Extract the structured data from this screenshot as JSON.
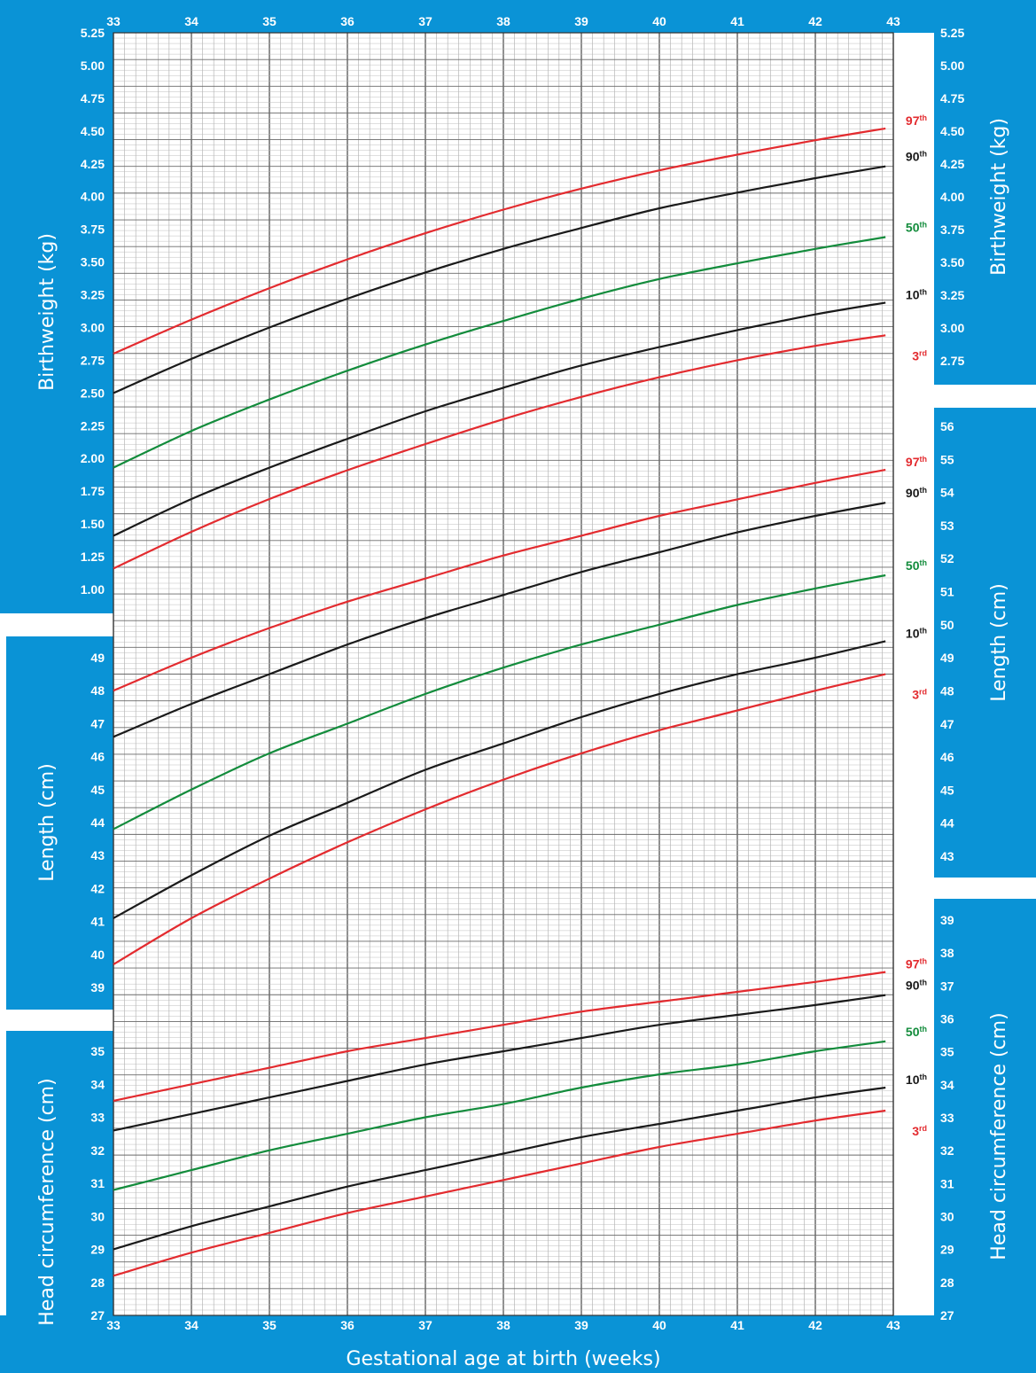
{
  "chart_data": {
    "type": "line",
    "xlabel": "Gestational age at birth (weeks)",
    "x_ticks": [
      "33",
      "34",
      "35",
      "36",
      "37",
      "38",
      "39",
      "40",
      "41",
      "42",
      "43"
    ],
    "xlim": [
      33,
      43
    ],
    "colors": {
      "panel": "#0a93d6",
      "red": "#e32b2f",
      "black": "#1a1a1a",
      "green": "#138c3c",
      "grid": "#9a9a9a"
    },
    "percentile_labels": [
      {
        "num": "97",
        "suf": "th",
        "color": "red"
      },
      {
        "num": "90",
        "suf": "th",
        "color": "black"
      },
      {
        "num": "50",
        "suf": "th",
        "color": "green"
      },
      {
        "num": "10",
        "suf": "th",
        "color": "black"
      },
      {
        "num": "3",
        "suf": "rd",
        "color": "red"
      }
    ],
    "panels": [
      {
        "ylabel": "Birthweight (kg)",
        "unit": "kg",
        "left_ticks": [
          "5.25",
          "5.00",
          "4.75",
          "4.50",
          "4.25",
          "4.00",
          "3.75",
          "3.50",
          "3.25",
          "3.00",
          "2.75",
          "2.50",
          "2.25",
          "2.00",
          "1.75",
          "1.50",
          "1.25",
          "1.00"
        ],
        "right_ticks": [
          "5.25",
          "5.00",
          "4.75",
          "4.50",
          "4.25",
          "4.00",
          "3.75",
          "3.50",
          "3.25",
          "3.00",
          "2.75"
        ],
        "series": [
          {
            "percentile": "97",
            "x": [
              33,
              34,
              35,
              36,
              37,
              38,
              39,
              40,
              41,
              42,
              42.9
            ],
            "y": [
              2.8,
              3.06,
              3.3,
              3.52,
              3.72,
              3.9,
              4.06,
              4.2,
              4.32,
              4.43,
              4.52
            ]
          },
          {
            "percentile": "90",
            "x": [
              33,
              34,
              35,
              36,
              37,
              38,
              39,
              40,
              41,
              42,
              42.9
            ],
            "y": [
              2.5,
              2.76,
              3.0,
              3.22,
              3.42,
              3.6,
              3.76,
              3.91,
              4.03,
              4.14,
              4.23
            ]
          },
          {
            "percentile": "50",
            "x": [
              33,
              34,
              35,
              36,
              37,
              38,
              39,
              40,
              41,
              42,
              42.9
            ],
            "y": [
              1.93,
              2.21,
              2.45,
              2.67,
              2.87,
              3.05,
              3.22,
              3.37,
              3.49,
              3.6,
              3.69
            ]
          },
          {
            "percentile": "10",
            "x": [
              33,
              34,
              35,
              36,
              37,
              38,
              39,
              40,
              41,
              42,
              42.9
            ],
            "y": [
              1.41,
              1.69,
              1.93,
              2.15,
              2.36,
              2.54,
              2.71,
              2.85,
              2.98,
              3.1,
              3.19
            ]
          },
          {
            "percentile": "3",
            "x": [
              33,
              34,
              35,
              36,
              37,
              38,
              39,
              40,
              41,
              42,
              42.9
            ],
            "y": [
              1.16,
              1.44,
              1.69,
              1.91,
              2.11,
              2.3,
              2.47,
              2.62,
              2.75,
              2.86,
              2.94
            ]
          }
        ]
      },
      {
        "ylabel": "Length (cm)",
        "unit": "cm",
        "left_ticks": [
          "49",
          "48",
          "47",
          "46",
          "45",
          "44",
          "43",
          "42",
          "41",
          "40",
          "39"
        ],
        "right_ticks": [
          "56",
          "55",
          "54",
          "53",
          "52",
          "51",
          "50",
          "49",
          "48",
          "47",
          "46",
          "45",
          "44",
          "43"
        ],
        "series": [
          {
            "percentile": "97",
            "x": [
              33,
              34,
              35,
              36,
              37,
              38,
              39,
              40,
              41,
              42,
              42.9
            ],
            "y": [
              48.0,
              49.0,
              49.9,
              50.7,
              51.4,
              52.1,
              52.7,
              53.3,
              53.8,
              54.3,
              54.7
            ]
          },
          {
            "percentile": "90",
            "x": [
              33,
              34,
              35,
              36,
              37,
              38,
              39,
              40,
              41,
              42,
              42.9
            ],
            "y": [
              46.6,
              47.6,
              48.5,
              49.4,
              50.2,
              50.9,
              51.6,
              52.2,
              52.8,
              53.3,
              53.7
            ]
          },
          {
            "percentile": "50",
            "x": [
              33,
              34,
              35,
              36,
              37,
              38,
              39,
              40,
              41,
              42,
              42.9
            ],
            "y": [
              43.8,
              45.0,
              46.1,
              47.0,
              47.9,
              48.7,
              49.4,
              50.0,
              50.6,
              51.1,
              51.5
            ]
          },
          {
            "percentile": "10",
            "x": [
              33,
              34,
              35,
              36,
              37,
              38,
              39,
              40,
              41,
              42,
              42.9
            ],
            "y": [
              41.1,
              42.4,
              43.6,
              44.6,
              45.6,
              46.4,
              47.2,
              47.9,
              48.5,
              49.0,
              49.5
            ]
          },
          {
            "percentile": "3",
            "x": [
              33,
              34,
              35,
              36,
              37,
              38,
              39,
              40,
              41,
              42,
              42.9
            ],
            "y": [
              39.7,
              41.1,
              42.3,
              43.4,
              44.4,
              45.3,
              46.1,
              46.8,
              47.4,
              48.0,
              48.5
            ]
          }
        ]
      },
      {
        "ylabel": "Head circumference (cm)",
        "unit": "cm",
        "left_ticks": [
          "35",
          "34",
          "33",
          "32",
          "31",
          "30",
          "29",
          "28",
          "27"
        ],
        "right_ticks": [
          "39",
          "38",
          "37",
          "36",
          "35",
          "34",
          "33",
          "32",
          "31",
          "30",
          "29",
          "28",
          "27"
        ],
        "series": [
          {
            "percentile": "97",
            "x": [
              33,
              34,
              35,
              36,
              37,
              38,
              39,
              40,
              41,
              42,
              42.9
            ],
            "y": [
              33.5,
              34.0,
              34.5,
              35.0,
              35.4,
              35.8,
              36.2,
              36.5,
              36.8,
              37.1,
              37.4
            ]
          },
          {
            "percentile": "90",
            "x": [
              33,
              34,
              35,
              36,
              37,
              38,
              39,
              40,
              41,
              42,
              42.9
            ],
            "y": [
              32.6,
              33.1,
              33.6,
              34.1,
              34.6,
              35.0,
              35.4,
              35.8,
              36.1,
              36.4,
              36.7
            ]
          },
          {
            "percentile": "50",
            "x": [
              33,
              34,
              35,
              36,
              37,
              38,
              39,
              40,
              41,
              42,
              42.9
            ],
            "y": [
              30.8,
              31.4,
              32.0,
              32.5,
              33.0,
              33.4,
              33.9,
              34.3,
              34.6,
              35.0,
              35.3
            ]
          },
          {
            "percentile": "10",
            "x": [
              33,
              34,
              35,
              36,
              37,
              38,
              39,
              40,
              41,
              42,
              42.9
            ],
            "y": [
              29.0,
              29.7,
              30.3,
              30.9,
              31.4,
              31.9,
              32.4,
              32.8,
              33.2,
              33.6,
              33.9
            ]
          },
          {
            "percentile": "3",
            "x": [
              33,
              34,
              35,
              36,
              37,
              38,
              39,
              40,
              41,
              42,
              42.9
            ],
            "y": [
              28.2,
              28.9,
              29.5,
              30.1,
              30.6,
              31.1,
              31.6,
              32.1,
              32.5,
              32.9,
              33.2
            ]
          }
        ]
      }
    ]
  }
}
